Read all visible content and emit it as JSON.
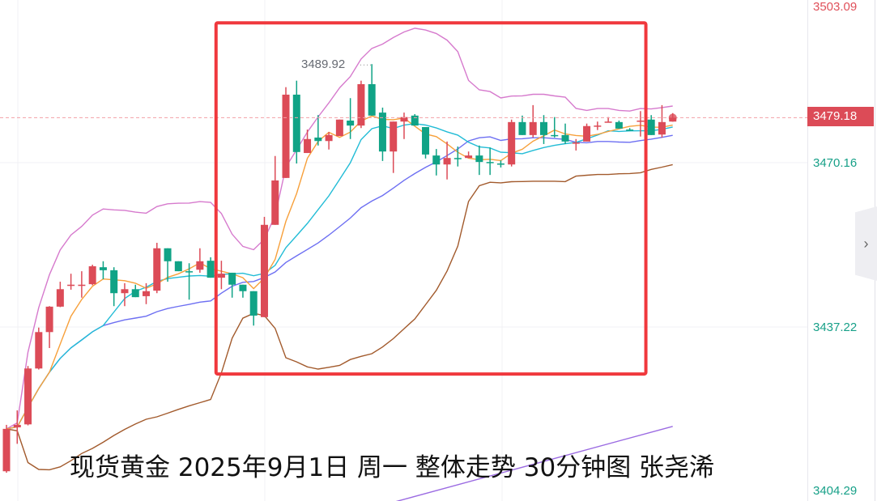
{
  "caption": "现货黄金 2025年9月1日 周一 整体走势 30分钟图 张尧浠",
  "price_axis": {
    "labels": [
      "3503.09",
      "3470.16",
      "3437.22",
      "3404.29"
    ],
    "current_price": "3479.18",
    "collapse_icon": "chevron-right-icon"
  },
  "max_label": "3489.92",
  "colors": {
    "up": "#dc4b57",
    "down": "#10a386",
    "ma5": "#f7a03b",
    "ma10": "#22bcd6",
    "boll_mid": "#6d6ff2",
    "boll_upper": "#d67acd",
    "boll_lower": "#a25a2c",
    "long_ma": "#9b6be2",
    "annotation_box": "#f0383d"
  },
  "chart_data": {
    "type": "candlestick",
    "title": "",
    "ylim": [
      3401.0,
      3504.5
    ],
    "y_ticks": [
      3503.09,
      3470.16,
      3437.22,
      3404.29
    ],
    "grid": true,
    "last_price": 3479.18,
    "marked_high": 3489.92,
    "indicators": [
      "MA5",
      "MA10",
      "BOLL(20,2)",
      "long MA"
    ],
    "long_ma": {
      "from_candle": 35,
      "from_value": 3401.5,
      "to_candle": 62,
      "to_value": 3417.3
    },
    "annotation_box": {
      "from_candle": 19.5,
      "to_candle": 59.5,
      "top": 3498.2,
      "bottom": 3427.8
    },
    "ohlc": [
      [
        3408.3,
        3417.6,
        3408.0,
        3416.8
      ],
      [
        3417.1,
        3420.5,
        3413.8,
        3417.6
      ],
      [
        3417.7,
        3429.4,
        3417.5,
        3428.9
      ],
      [
        3428.9,
        3437.1,
        3428.7,
        3436.2
      ],
      [
        3436.2,
        3441.4,
        3433.0,
        3441.3
      ],
      [
        3441.3,
        3446.3,
        3441.2,
        3444.8
      ],
      [
        3445.5,
        3447.9,
        3444.7,
        3445.7
      ],
      [
        3445.6,
        3448.4,
        3443.1,
        3445.7
      ],
      [
        3445.8,
        3449.7,
        3445.6,
        3449.4
      ],
      [
        3449.2,
        3450.4,
        3446.8,
        3448.6
      ],
      [
        3448.6,
        3449.2,
        3441.4,
        3444.0
      ],
      [
        3444.0,
        3446.0,
        3441.4,
        3444.8
      ],
      [
        3444.8,
        3445.7,
        3443.2,
        3443.2
      ],
      [
        3443.4,
        3446.0,
        3441.8,
        3444.4
      ],
      [
        3444.5,
        3454.1,
        3444.0,
        3453.0
      ],
      [
        3453.0,
        3453.0,
        3446.3,
        3450.4
      ],
      [
        3450.4,
        3450.4,
        3448.4,
        3448.4
      ],
      [
        3448.4,
        3450.0,
        3442.7,
        3448.2
      ],
      [
        3448.7,
        3453.0,
        3448.1,
        3450.4
      ],
      [
        3450.5,
        3451.2,
        3447.1,
        3447.1
      ],
      [
        3447.1,
        3450.5,
        3444.8,
        3447.9
      ],
      [
        3448.1,
        3448.1,
        3443.1,
        3445.7
      ],
      [
        3445.7,
        3445.7,
        3443.1,
        3444.4
      ],
      [
        3444.4,
        3444.4,
        3437.5,
        3439.5
      ],
      [
        3439.2,
        3459.3,
        3439.2,
        3457.7
      ],
      [
        3457.7,
        3471.5,
        3457.7,
        3466.6
      ],
      [
        3467.1,
        3485.3,
        3467.1,
        3483.8
      ],
      [
        3483.8,
        3486.6,
        3470.0,
        3472.3
      ],
      [
        3472.1,
        3476.8,
        3472.1,
        3474.9
      ],
      [
        3475.2,
        3479.7,
        3473.6,
        3474.5
      ],
      [
        3474.5,
        3476.3,
        3472.8,
        3475.7
      ],
      [
        3475.5,
        3478.8,
        3475.5,
        3478.8
      ],
      [
        3478.6,
        3483.1,
        3474.9,
        3477.6
      ],
      [
        3477.6,
        3486.6,
        3477.1,
        3485.9
      ],
      [
        3485.9,
        3489.92,
        3479.6,
        3479.6
      ],
      [
        3480.2,
        3481.2,
        3470.5,
        3472.4
      ],
      [
        3472.4,
        3478.4,
        3468.1,
        3478.4
      ],
      [
        3478.4,
        3480.2,
        3474.9,
        3479.3
      ],
      [
        3479.6,
        3479.9,
        3477.6,
        3477.6
      ],
      [
        3477.3,
        3477.3,
        3471.0,
        3471.8
      ],
      [
        3471.6,
        3472.9,
        3467.6,
        3469.8
      ],
      [
        3469.8,
        3474.4,
        3466.8,
        3471.1
      ],
      [
        3471.1,
        3473.4,
        3469.4,
        3471.0
      ],
      [
        3471.1,
        3472.4,
        3471.1,
        3471.6
      ],
      [
        3471.6,
        3473.6,
        3467.7,
        3470.3
      ],
      [
        3470.3,
        3473.2,
        3467.7,
        3470.2
      ],
      [
        3470.0,
        3470.6,
        3469.2,
        3469.8
      ],
      [
        3469.8,
        3478.8,
        3469.4,
        3478.3
      ],
      [
        3478.3,
        3479.6,
        3475.7,
        3475.7
      ],
      [
        3475.7,
        3481.7,
        3475.2,
        3478.3
      ],
      [
        3478.3,
        3479.7,
        3473.9,
        3475.7
      ],
      [
        3475.7,
        3479.3,
        3475.2,
        3475.5
      ],
      [
        3475.7,
        3478.0,
        3473.9,
        3474.4
      ],
      [
        3474.1,
        3474.9,
        3472.6,
        3474.2
      ],
      [
        3474.4,
        3478.0,
        3474.4,
        3477.5
      ],
      [
        3477.5,
        3478.4,
        3476.7,
        3477.6
      ],
      [
        3478.3,
        3479.3,
        3478.3,
        3478.4
      ],
      [
        3478.3,
        3478.6,
        3477.0,
        3477.0
      ],
      [
        3476.8,
        3477.1,
        3476.5,
        3476.7
      ],
      [
        3478.4,
        3480.5,
        3475.4,
        3478.6
      ],
      [
        3478.8,
        3479.7,
        3475.7,
        3475.7
      ],
      [
        3475.8,
        3481.7,
        3475.2,
        3478.3
      ],
      [
        3478.4,
        3480.1,
        3478.4,
        3479.18
      ]
    ]
  }
}
